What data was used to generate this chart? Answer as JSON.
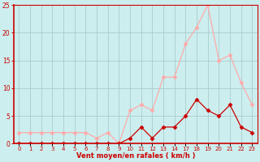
{
  "x_labels": [
    "0",
    "1",
    "2",
    "3",
    "4",
    "5",
    "6",
    "7",
    "8",
    "9",
    "10",
    "11",
    "12",
    "13",
    "14",
    "17",
    "18",
    "19",
    "20",
    "21",
    "22",
    "23"
  ],
  "wind_mean": [
    0,
    0,
    0,
    0,
    0,
    0,
    0,
    0,
    0,
    0,
    1,
    3,
    1,
    3,
    3,
    5,
    8,
    6,
    5,
    7,
    3,
    2
  ],
  "wind_gust": [
    2,
    2,
    2,
    2,
    2,
    2,
    2,
    1,
    2,
    0,
    6,
    7,
    6,
    12,
    12,
    18,
    21,
    25,
    15,
    16,
    11,
    7
  ],
  "mean_color": "#cc0000",
  "gust_color": "#ffaaaa",
  "bg_color": "#cceeee",
  "grid_color": "#aacccc",
  "axis_color": "#cc0000",
  "tick_color": "#cc0000",
  "title": "Vent moyen/en rafales ( km/h )",
  "ylim": [
    0,
    25
  ],
  "yticks": [
    0,
    5,
    10,
    15,
    20,
    25
  ],
  "n_points": 22
}
